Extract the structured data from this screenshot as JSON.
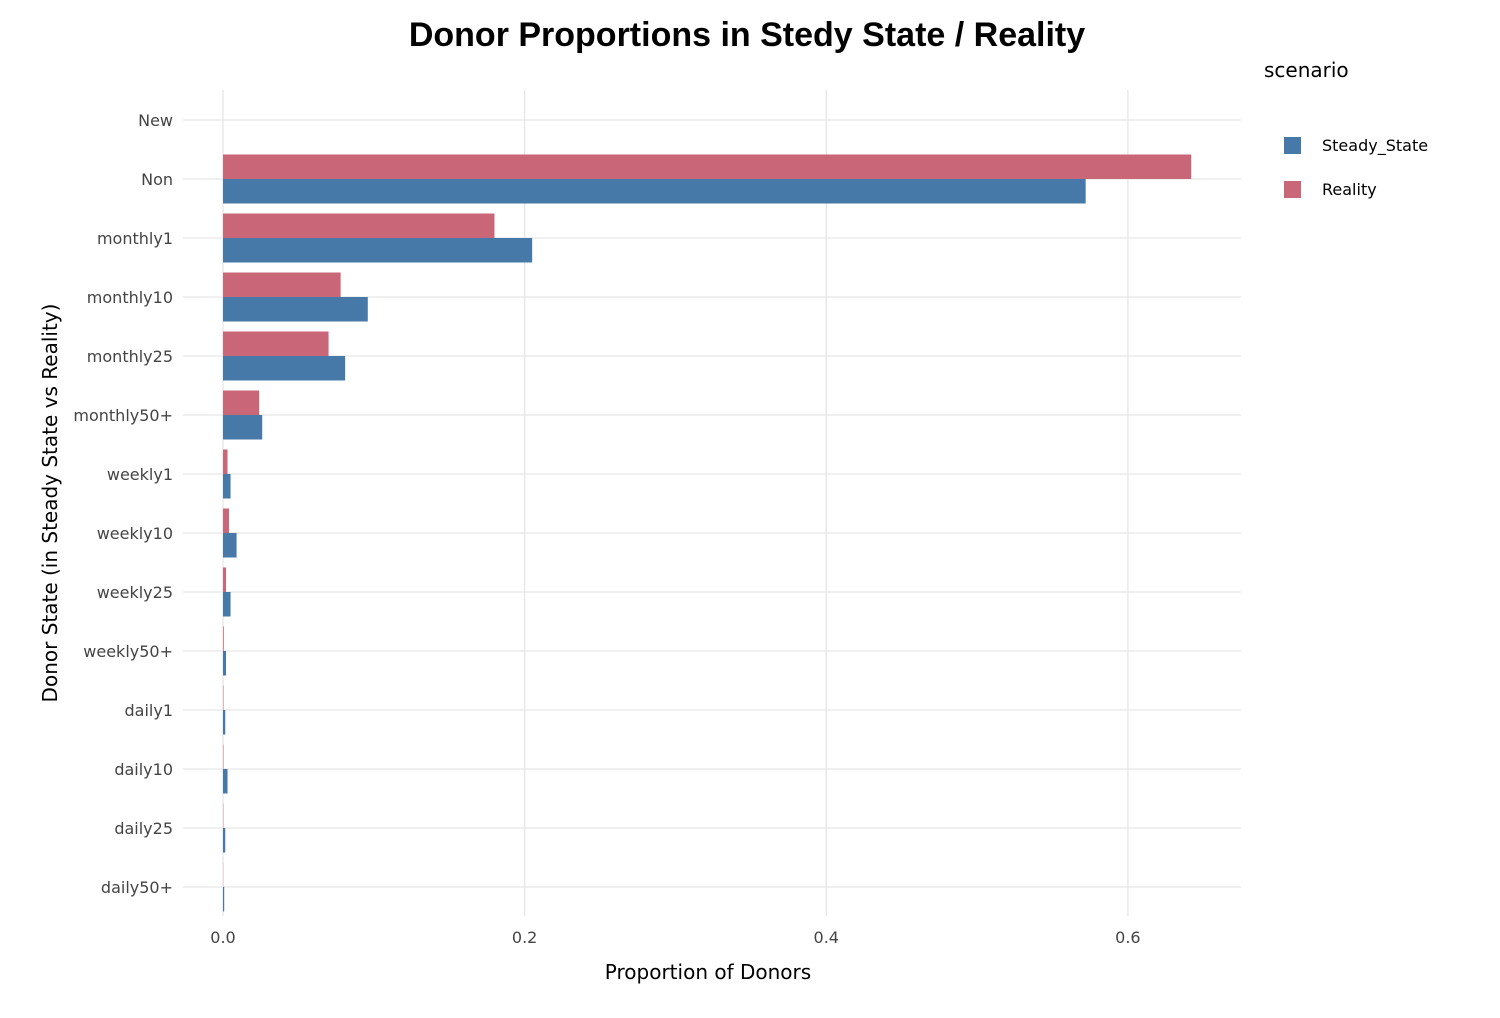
{
  "chart_data": {
    "type": "bar",
    "orientation": "horizontal",
    "title": "Donor Proportions in Stedy State / Reality",
    "xlabel": "Proportion of Donors",
    "ylabel": "Donor State (in Steady State vs Reality)",
    "categories": [
      "New",
      "Non",
      "monthly1",
      "monthly10",
      "monthly25",
      "monthly50+",
      "weekly1",
      "weekly10",
      "weekly25",
      "weekly50+",
      "daily1",
      "daily10",
      "daily25",
      "daily50+"
    ],
    "series": [
      {
        "name": "Steady_State",
        "color": "#4679a8",
        "values": [
          0,
          0.572,
          0.205,
          0.096,
          0.081,
          0.026,
          0.005,
          0.009,
          0.005,
          0.002,
          0.0015,
          0.003,
          0.0015,
          0.0008
        ]
      },
      {
        "name": "Reality",
        "color": "#c96677",
        "values": [
          0,
          0.642,
          0.18,
          0.078,
          0.07,
          0.024,
          0.003,
          0.004,
          0.002,
          0.0005,
          0.0003,
          0.0003,
          0.0002,
          0.0001
        ]
      }
    ],
    "xlim": [
      0,
      0.675
    ],
    "xticks": [
      0,
      0.2,
      0.4,
      0.6
    ],
    "xtick_labels": [
      "0.0",
      "0.2",
      "0.4",
      "0.6"
    ],
    "grid": true,
    "legend": {
      "title": "scenario",
      "position": "right"
    }
  }
}
